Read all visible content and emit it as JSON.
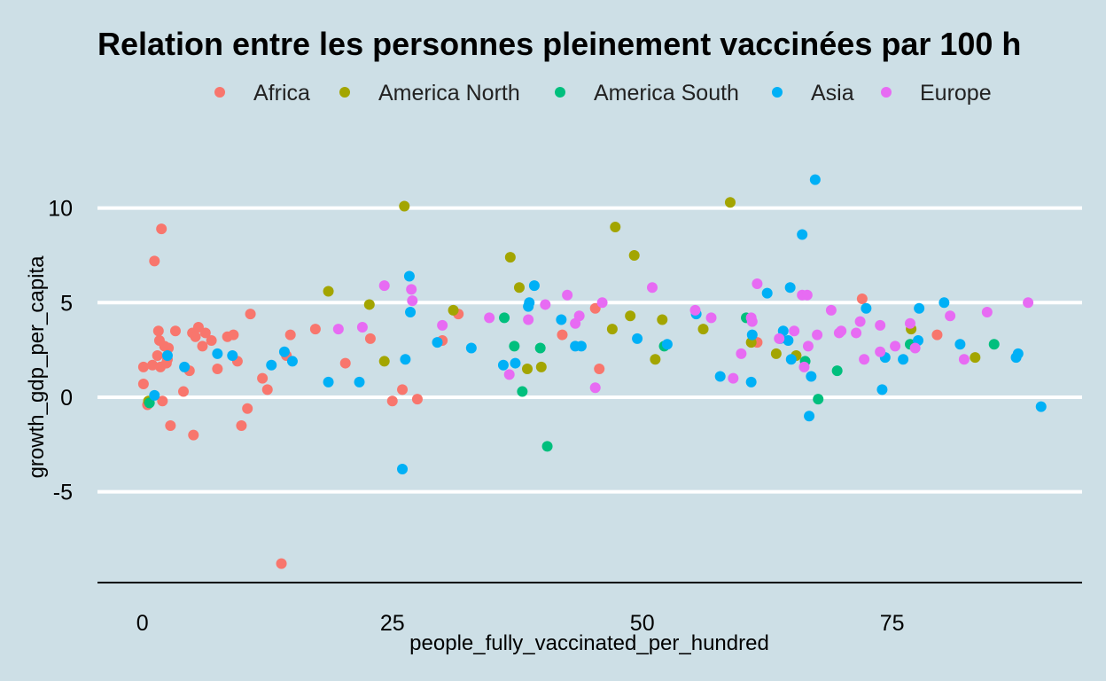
{
  "background": "#cddfe6",
  "chart_data": {
    "type": "scatter",
    "title": "Relation entre les personnes pleinement vaccinées par 100 h",
    "xlabel": "people_fully_vaccinated_per_hundred",
    "ylabel": "growth_gdp_per_capita",
    "xlim": [
      -4.5,
      94
    ],
    "ylim": [
      -9.8,
      13.5
    ],
    "x_ticks": [
      0,
      25,
      50,
      75
    ],
    "y_ticks": [
      -5,
      0,
      5,
      10
    ],
    "x_tick_labels": [
      "0",
      "25",
      "50",
      "75"
    ],
    "y_tick_labels": [
      "-5",
      "0",
      "5",
      "10"
    ],
    "grid": "horizontal major lines only",
    "legend_position": "top",
    "series": [
      {
        "name": "Africa",
        "color": "#f8766d",
        "points": [
          [
            0.1,
            1.6
          ],
          [
            0.1,
            0.7
          ],
          [
            0.5,
            -0.4
          ],
          [
            1.0,
            1.7
          ],
          [
            1.2,
            7.2
          ],
          [
            1.5,
            2.2
          ],
          [
            1.6,
            3.5
          ],
          [
            1.7,
            3.0
          ],
          [
            1.8,
            1.6
          ],
          [
            1.9,
            8.9
          ],
          [
            2.0,
            -0.2
          ],
          [
            2.2,
            2.7
          ],
          [
            2.4,
            1.8
          ],
          [
            2.5,
            2.0
          ],
          [
            2.6,
            2.6
          ],
          [
            2.8,
            -1.5
          ],
          [
            3.3,
            3.5
          ],
          [
            4.1,
            0.3
          ],
          [
            4.7,
            1.4
          ],
          [
            5.0,
            3.4
          ],
          [
            5.1,
            -2.0
          ],
          [
            5.3,
            3.2
          ],
          [
            5.6,
            3.7
          ],
          [
            6.0,
            2.7
          ],
          [
            6.3,
            3.4
          ],
          [
            6.9,
            3.0
          ],
          [
            7.5,
            1.5
          ],
          [
            8.5,
            3.2
          ],
          [
            9.1,
            3.3
          ],
          [
            9.5,
            1.9
          ],
          [
            9.9,
            -1.5
          ],
          [
            10.5,
            -0.6
          ],
          [
            10.8,
            4.4
          ],
          [
            12.0,
            1.0
          ],
          [
            12.5,
            0.4
          ],
          [
            13.9,
            -8.8
          ],
          [
            14.4,
            2.2
          ],
          [
            14.8,
            3.3
          ],
          [
            17.3,
            3.6
          ],
          [
            20.3,
            1.8
          ],
          [
            22.8,
            3.1
          ],
          [
            25.0,
            -0.2
          ],
          [
            26.0,
            0.4
          ],
          [
            27.5,
            -0.1
          ],
          [
            30.0,
            3.0
          ],
          [
            31.6,
            4.4
          ],
          [
            42.0,
            3.3
          ],
          [
            45.3,
            4.7
          ],
          [
            45.7,
            1.5
          ],
          [
            61.5,
            2.9
          ],
          [
            72.0,
            5.2
          ],
          [
            79.5,
            3.3
          ]
        ]
      },
      {
        "name": "America North",
        "color": "#a3a500",
        "points": [
          [
            0.6,
            -0.2
          ],
          [
            18.6,
            5.6
          ],
          [
            22.7,
            4.9
          ],
          [
            24.2,
            1.9
          ],
          [
            26.2,
            10.1
          ],
          [
            31.1,
            4.6
          ],
          [
            36.8,
            7.4
          ],
          [
            37.7,
            5.8
          ],
          [
            38.5,
            1.5
          ],
          [
            39.9,
            1.6
          ],
          [
            47.0,
            3.6
          ],
          [
            47.3,
            9.0
          ],
          [
            48.8,
            4.3
          ],
          [
            49.2,
            7.5
          ],
          [
            51.3,
            2.0
          ],
          [
            52.0,
            4.1
          ],
          [
            56.1,
            3.6
          ],
          [
            58.8,
            10.3
          ],
          [
            60.9,
            2.9
          ],
          [
            63.4,
            2.3
          ],
          [
            65.4,
            2.2
          ],
          [
            76.9,
            3.6
          ],
          [
            83.3,
            2.1
          ]
        ]
      },
      {
        "name": "America South",
        "color": "#00bf7d",
        "points": [
          [
            0.7,
            -0.3
          ],
          [
            36.2,
            4.2
          ],
          [
            37.2,
            2.7
          ],
          [
            38.0,
            0.3
          ],
          [
            39.8,
            2.6
          ],
          [
            40.5,
            -2.6
          ],
          [
            52.2,
            2.7
          ],
          [
            60.4,
            4.2
          ],
          [
            66.3,
            1.9
          ],
          [
            67.6,
            -0.1
          ],
          [
            69.5,
            1.4
          ],
          [
            76.8,
            2.8
          ],
          [
            85.2,
            2.8
          ]
        ]
      },
      {
        "name": "Asia",
        "color": "#00b0f6",
        "points": [
          [
            1.2,
            0.1
          ],
          [
            2.5,
            2.2
          ],
          [
            4.2,
            1.6
          ],
          [
            7.5,
            2.3
          ],
          [
            9.0,
            2.2
          ],
          [
            12.9,
            1.7
          ],
          [
            14.2,
            2.4
          ],
          [
            15.0,
            1.9
          ],
          [
            18.6,
            0.8
          ],
          [
            21.7,
            0.8
          ],
          [
            26.0,
            -3.8
          ],
          [
            26.3,
            2.0
          ],
          [
            26.7,
            6.4
          ],
          [
            26.8,
            4.5
          ],
          [
            29.5,
            2.9
          ],
          [
            32.9,
            2.6
          ],
          [
            36.1,
            1.7
          ],
          [
            37.3,
            1.8
          ],
          [
            38.6,
            4.8
          ],
          [
            38.7,
            5.0
          ],
          [
            39.2,
            5.9
          ],
          [
            41.9,
            4.1
          ],
          [
            43.3,
            2.7
          ],
          [
            43.9,
            2.7
          ],
          [
            49.5,
            3.1
          ],
          [
            52.5,
            2.8
          ],
          [
            55.4,
            4.4
          ],
          [
            57.8,
            1.1
          ],
          [
            60.9,
            0.8
          ],
          [
            61.0,
            3.3
          ],
          [
            62.5,
            5.5
          ],
          [
            63.8,
            3.1
          ],
          [
            64.1,
            3.5
          ],
          [
            64.6,
            3.0
          ],
          [
            64.8,
            5.8
          ],
          [
            64.9,
            2.0
          ],
          [
            66.0,
            8.6
          ],
          [
            66.7,
            -1.0
          ],
          [
            66.9,
            1.1
          ],
          [
            67.3,
            11.5
          ],
          [
            72.4,
            4.7
          ],
          [
            74.0,
            0.4
          ],
          [
            74.3,
            2.1
          ],
          [
            76.1,
            2.0
          ],
          [
            77.6,
            3.0
          ],
          [
            77.7,
            4.7
          ],
          [
            80.2,
            5.0
          ],
          [
            81.8,
            2.8
          ],
          [
            87.4,
            2.1
          ],
          [
            87.6,
            2.3
          ],
          [
            89.9,
            -0.5
          ]
        ]
      },
      {
        "name": "Europe",
        "color": "#e76bf3",
        "points": [
          [
            19.6,
            3.6
          ],
          [
            22.0,
            3.7
          ],
          [
            24.2,
            5.9
          ],
          [
            26.9,
            5.7
          ],
          [
            27.0,
            5.1
          ],
          [
            30.0,
            3.8
          ],
          [
            34.7,
            4.2
          ],
          [
            36.7,
            1.2
          ],
          [
            38.6,
            4.1
          ],
          [
            40.3,
            4.9
          ],
          [
            42.5,
            5.4
          ],
          [
            43.3,
            3.9
          ],
          [
            43.7,
            4.3
          ],
          [
            45.3,
            0.5
          ],
          [
            46.0,
            5.0
          ],
          [
            51.0,
            5.8
          ],
          [
            55.3,
            4.6
          ],
          [
            56.9,
            4.2
          ],
          [
            59.1,
            1.0
          ],
          [
            59.9,
            2.3
          ],
          [
            60.9,
            4.2
          ],
          [
            61.0,
            4.0
          ],
          [
            61.5,
            6.0
          ],
          [
            63.7,
            3.1
          ],
          [
            65.2,
            3.5
          ],
          [
            66.0,
            5.4
          ],
          [
            66.2,
            1.6
          ],
          [
            66.5,
            5.4
          ],
          [
            66.6,
            2.7
          ],
          [
            67.5,
            3.3
          ],
          [
            68.9,
            4.6
          ],
          [
            69.7,
            3.4
          ],
          [
            69.9,
            3.5
          ],
          [
            71.4,
            3.4
          ],
          [
            71.8,
            4.0
          ],
          [
            72.2,
            2.0
          ],
          [
            73.8,
            3.8
          ],
          [
            73.8,
            2.4
          ],
          [
            75.3,
            2.7
          ],
          [
            76.8,
            3.9
          ],
          [
            77.3,
            2.6
          ],
          [
            80.8,
            4.3
          ],
          [
            82.2,
            2.0
          ],
          [
            84.5,
            4.5
          ],
          [
            88.6,
            5.0
          ]
        ]
      }
    ]
  }
}
